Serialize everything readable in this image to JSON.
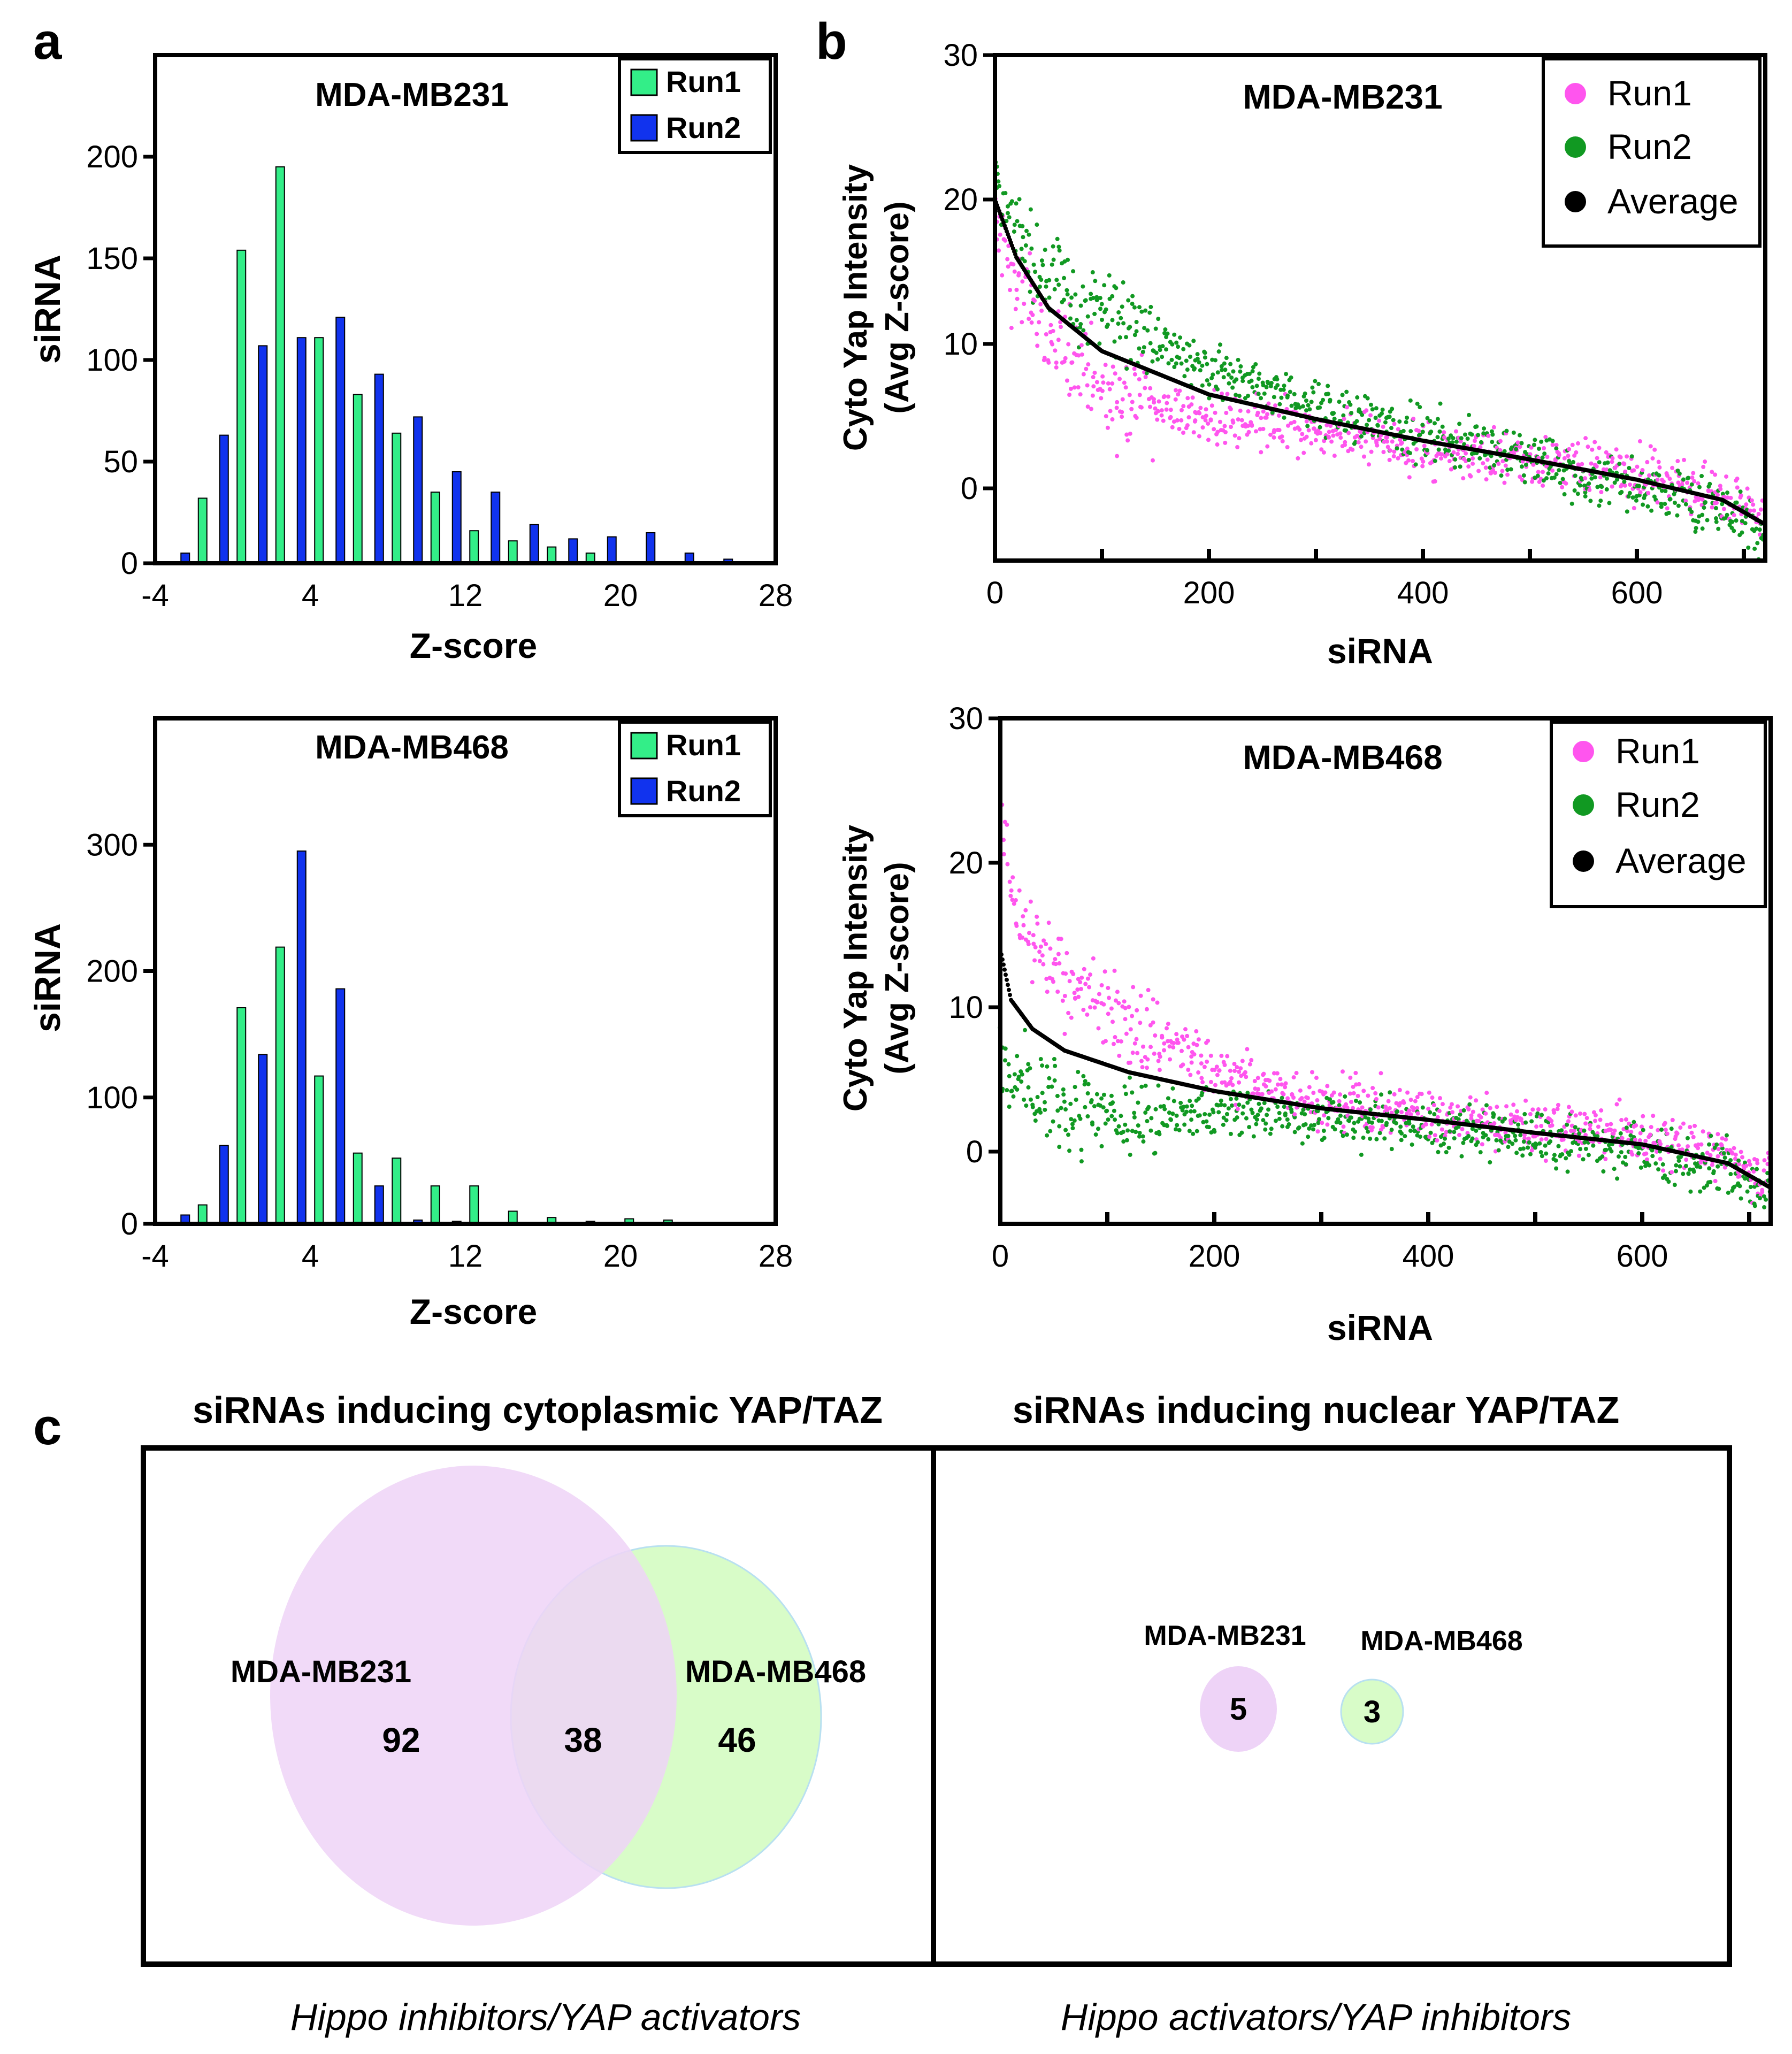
{
  "panel_labels": {
    "a": "a",
    "b": "b",
    "c": "c"
  },
  "colors": {
    "run1_bar": "#33ee88",
    "run2_bar": "#1133ee",
    "run1_dot": "#ff55ee",
    "run2_dot": "#119922",
    "avg_dot": "#000000",
    "venn_231": "#eed3f7",
    "venn_468": "#d8fcc8"
  },
  "chart_data": [
    {
      "id": "hist_231",
      "type": "bar",
      "title": "MDA-MB231",
      "xlabel": "Z-score",
      "ylabel": "siRNA",
      "xlim": [
        -4,
        28
      ],
      "ylim": [
        0,
        250
      ],
      "xticks": [
        -4,
        4,
        12,
        20,
        28
      ],
      "yticks": [
        0,
        50,
        100,
        150,
        200
      ],
      "legend": [
        "Run1",
        "Run2"
      ],
      "series": [
        {
          "name": "Run1",
          "x": [
            -3,
            -1,
            1,
            3,
            5,
            7,
            9,
            11,
            13,
            15,
            17,
            19,
            21,
            23,
            25
          ],
          "values": [
            0,
            32,
            154,
            195,
            111,
            83,
            64,
            35,
            16,
            11,
            8,
            5,
            0,
            0,
            0
          ]
        },
        {
          "name": "Run2",
          "x": [
            -3,
            -1,
            1,
            3,
            5,
            7,
            9,
            11,
            13,
            15,
            17,
            19,
            21,
            23,
            25
          ],
          "values": [
            5,
            63,
            107,
            111,
            121,
            93,
            72,
            45,
            35,
            19,
            12,
            13,
            15,
            5,
            2
          ]
        }
      ]
    },
    {
      "id": "hist_468",
      "type": "bar",
      "title": "MDA-MB468",
      "xlabel": "Z-score",
      "ylabel": "siRNA",
      "xlim": [
        -4,
        28
      ],
      "ylim": [
        0,
        400
      ],
      "xticks": [
        -4,
        4,
        12,
        20,
        28
      ],
      "yticks": [
        0,
        100,
        200,
        300
      ],
      "legend": [
        "Run1",
        "Run2"
      ],
      "series": [
        {
          "name": "Run1",
          "x": [
            -3,
            -1,
            1,
            3,
            5,
            7,
            9,
            11,
            13,
            15,
            17,
            19,
            21,
            23,
            25
          ],
          "values": [
            0,
            15,
            171,
            219,
            117,
            56,
            52,
            30,
            30,
            10,
            5,
            2,
            4,
            3,
            0
          ]
        },
        {
          "name": "Run2",
          "x": [
            -3,
            -1,
            1,
            3,
            5,
            7,
            9,
            11,
            13,
            15,
            17,
            19,
            21,
            23,
            25
          ],
          "values": [
            7,
            62,
            134,
            295,
            186,
            30,
            3,
            2,
            0,
            0,
            0,
            0,
            0,
            0,
            0
          ]
        }
      ]
    },
    {
      "id": "scatter_231",
      "type": "scatter",
      "title": "MDA-MB231",
      "xlabel": "siRNA",
      "ylabel": [
        "Cyto Yap Intensity",
        "(Avg Z-score)"
      ],
      "xlim": [
        0,
        720
      ],
      "ylim": [
        -5,
        30
      ],
      "n": 720,
      "xticks": [
        0,
        200,
        400,
        600
      ],
      "yticks": [
        0,
        10,
        20,
        30
      ],
      "legend": [
        "Run1",
        "Run2",
        "Average"
      ],
      "average_curve": [
        {
          "x": 0,
          "y": 20
        },
        {
          "x": 20,
          "y": 16
        },
        {
          "x": 50,
          "y": 12.5
        },
        {
          "x": 100,
          "y": 9.5
        },
        {
          "x": 200,
          "y": 6.5
        },
        {
          "x": 300,
          "y": 4.8
        },
        {
          "x": 400,
          "y": 3.3
        },
        {
          "x": 500,
          "y": 2
        },
        {
          "x": 600,
          "y": 0.6
        },
        {
          "x": 680,
          "y": -0.8
        },
        {
          "x": 720,
          "y": -2.5
        }
      ],
      "run1_offset": [
        {
          "x": 0,
          "y": -1.5
        },
        {
          "x": 100,
          "y": -2.5
        },
        {
          "x": 300,
          "y": -1
        },
        {
          "x": 600,
          "y": 0.5
        },
        {
          "x": 720,
          "y": 0.5
        }
      ],
      "run2_offset": [
        {
          "x": 0,
          "y": 1.5
        },
        {
          "x": 100,
          "y": 2.5
        },
        {
          "x": 300,
          "y": 1
        },
        {
          "x": 600,
          "y": -0.5
        },
        {
          "x": 720,
          "y": -0.5
        }
      ]
    },
    {
      "id": "scatter_468",
      "type": "scatter",
      "title": "MDA-MB468",
      "xlabel": "siRNA",
      "ylabel": [
        "Cyto Yap Intensity",
        "(Avg Z-score)"
      ],
      "xlim": [
        0,
        720
      ],
      "ylim": [
        -5,
        30
      ],
      "n": 720,
      "xticks": [
        0,
        200,
        400,
        600
      ],
      "yticks": [
        0,
        10,
        20,
        30
      ],
      "legend": [
        "Run1",
        "Run2",
        "Average"
      ],
      "average_curve": [
        {
          "x": 0,
          "y": 14
        },
        {
          "x": 10,
          "y": 10.5
        },
        {
          "x": 30,
          "y": 8.5
        },
        {
          "x": 60,
          "y": 7
        },
        {
          "x": 120,
          "y": 5.5
        },
        {
          "x": 200,
          "y": 4.2
        },
        {
          "x": 300,
          "y": 3
        },
        {
          "x": 400,
          "y": 2.2
        },
        {
          "x": 500,
          "y": 1.3
        },
        {
          "x": 600,
          "y": 0.5
        },
        {
          "x": 680,
          "y": -0.8
        },
        {
          "x": 720,
          "y": -2.5
        }
      ],
      "run1_offset": [
        {
          "x": 0,
          "y": 10
        },
        {
          "x": 20,
          "y": 6
        },
        {
          "x": 100,
          "y": 4
        },
        {
          "x": 200,
          "y": 1.5
        },
        {
          "x": 300,
          "y": 0.5
        },
        {
          "x": 720,
          "y": 0.5
        }
      ],
      "run2_offset": [
        {
          "x": 0,
          "y": -8
        },
        {
          "x": 20,
          "y": -5
        },
        {
          "x": 100,
          "y": -3.5
        },
        {
          "x": 200,
          "y": -1.5
        },
        {
          "x": 300,
          "y": -0.5
        },
        {
          "x": 720,
          "y": -0.5
        }
      ]
    }
  ],
  "venn": {
    "left": {
      "title": "siRNAs inducing cytoplasmic YAP/TAZ",
      "caption": "Hippo inhibitors/YAP activators",
      "set_a": "MDA-MB231",
      "set_b": "MDA-MB468",
      "only_a": "92",
      "overlap": "38",
      "only_b": "46"
    },
    "right": {
      "title": "siRNAs inducing nuclear YAP/TAZ",
      "caption": "Hippo activators/YAP inhibitors",
      "set_a": "MDA-MB231",
      "set_b": "MDA-MB468",
      "count_a": "5",
      "count_b": "3"
    }
  }
}
